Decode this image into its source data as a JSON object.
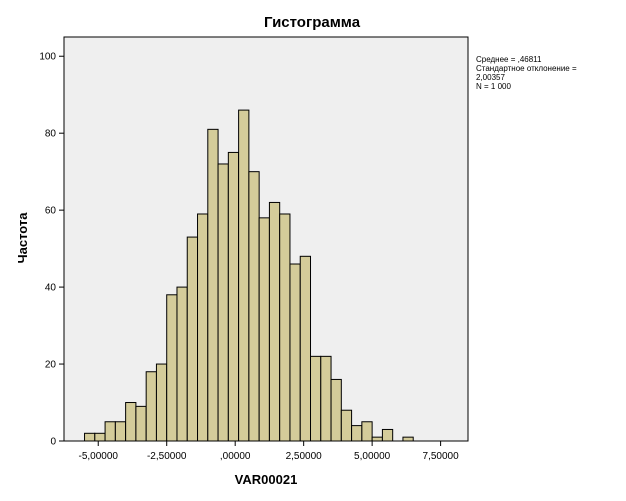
{
  "chart_data": {
    "type": "bar",
    "title": "Гистограмма",
    "xlabel": "VAR00021",
    "ylabel": "Частота",
    "ylim": [
      0,
      105
    ],
    "xlim": [
      -6.25,
      8.5
    ],
    "grid": false,
    "bin_width": 0.375,
    "x_ticks": [
      {
        "value": -5.0,
        "label": "-5,00000"
      },
      {
        "value": -2.5,
        "label": "-2,50000"
      },
      {
        "value": 0.0,
        "label": ",00000"
      },
      {
        "value": 2.5,
        "label": "2,50000"
      },
      {
        "value": 5.0,
        "label": "5,00000"
      },
      {
        "value": 7.5,
        "label": "7,50000"
      }
    ],
    "y_ticks": [
      {
        "value": 0,
        "label": "0"
      },
      {
        "value": 20,
        "label": "20"
      },
      {
        "value": 40,
        "label": "40"
      },
      {
        "value": 60,
        "label": "60"
      },
      {
        "value": 80,
        "label": "80"
      },
      {
        "value": 100,
        "label": "100"
      }
    ],
    "bins": [
      {
        "start": -5.5,
        "count": 2
      },
      {
        "start": -5.125,
        "count": 2
      },
      {
        "start": -4.75,
        "count": 5
      },
      {
        "start": -4.375,
        "count": 5
      },
      {
        "start": -4.0,
        "count": 10
      },
      {
        "start": -3.625,
        "count": 9
      },
      {
        "start": -3.25,
        "count": 18
      },
      {
        "start": -2.875,
        "count": 20
      },
      {
        "start": -2.5,
        "count": 38
      },
      {
        "start": -2.125,
        "count": 40
      },
      {
        "start": -1.75,
        "count": 53
      },
      {
        "start": -1.375,
        "count": 59
      },
      {
        "start": -1.0,
        "count": 81
      },
      {
        "start": -0.625,
        "count": 72
      },
      {
        "start": -0.25,
        "count": 75
      },
      {
        "start": 0.125,
        "count": 86
      },
      {
        "start": 0.5,
        "count": 70
      },
      {
        "start": 0.875,
        "count": 58
      },
      {
        "start": 1.25,
        "count": 62
      },
      {
        "start": 1.625,
        "count": 59
      },
      {
        "start": 2.0,
        "count": 46
      },
      {
        "start": 2.375,
        "count": 48
      },
      {
        "start": 2.75,
        "count": 22
      },
      {
        "start": 3.125,
        "count": 22
      },
      {
        "start": 3.5,
        "count": 16
      },
      {
        "start": 3.875,
        "count": 8
      },
      {
        "start": 4.25,
        "count": 4
      },
      {
        "start": 4.625,
        "count": 5
      },
      {
        "start": 5.0,
        "count": 1
      },
      {
        "start": 5.375,
        "count": 3
      },
      {
        "start": 5.75,
        "count": 0
      },
      {
        "start": 6.125,
        "count": 1
      }
    ],
    "stats": [
      "Среднее = ,46811",
      "Стандартное отклонение =",
      "2,00357",
      "N = 1 000"
    ],
    "legend_position": "right"
  },
  "colors": {
    "plot_background": "#efefef",
    "bar_fill": "#d4cc9a",
    "bar_stroke": "#000000",
    "axis": "#000000"
  }
}
